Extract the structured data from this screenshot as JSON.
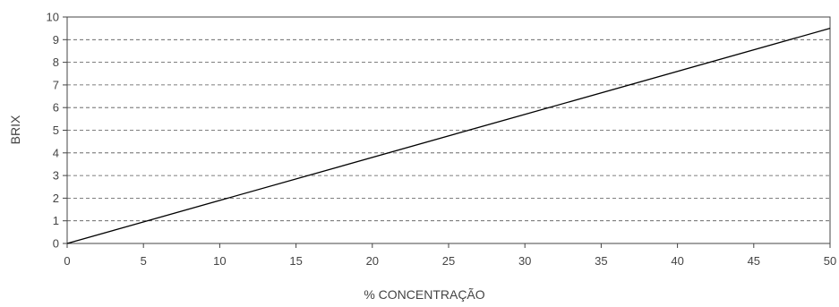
{
  "chart_data": {
    "type": "line",
    "title": "",
    "xlabel": "% CONCENTRAÇÃO",
    "ylabel": "BRIX",
    "xlim": [
      0,
      50
    ],
    "ylim": [
      0,
      10
    ],
    "xticks": [
      "0",
      "5",
      "10",
      "15",
      "20",
      "25",
      "30",
      "35",
      "40",
      "45",
      "50"
    ],
    "yticks": [
      "0",
      "1",
      "2",
      "3",
      "4",
      "5",
      "6",
      "7",
      "8",
      "9",
      "10"
    ],
    "grid": "horizontal-dashed",
    "series": [
      {
        "x": [
          0,
          50
        ],
        "y": [
          0,
          9.5
        ]
      }
    ],
    "colors": {
      "line": "#000000",
      "grid": "#555555",
      "axis": "#444444"
    }
  }
}
